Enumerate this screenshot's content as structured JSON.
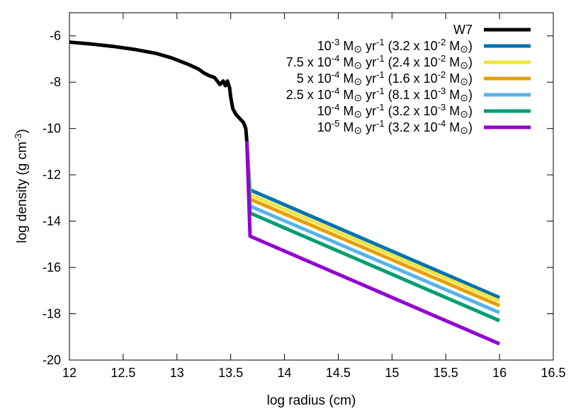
{
  "chart_data": {
    "type": "line",
    "xlabel": "log radius (cm)",
    "ylabel": "log density (g cm",
    "ylabel_sup": "-3",
    "ylabel_tail": ")",
    "xlim": [
      12,
      16.5
    ],
    "ylim": [
      -20,
      -5
    ],
    "xticks": [
      "12",
      "12.5",
      "13",
      "13.5",
      "14",
      "14.5",
      "15",
      "15.5",
      "16",
      "16.5"
    ],
    "yticks": [
      "-20",
      "-18",
      "-16",
      "-14",
      "-12",
      "-10",
      "-8",
      "-6"
    ],
    "grid": false,
    "legend_position": "top-right",
    "series": [
      {
        "name": "W7",
        "color": "#000000",
        "legend_parts": [
          [
            "W7",
            ""
          ]
        ],
        "x": [
          12.0,
          12.2,
          12.4,
          12.6,
          12.8,
          12.95,
          13.1,
          13.2,
          13.25,
          13.3,
          13.35,
          13.4,
          13.43,
          13.45,
          13.47,
          13.49,
          13.5,
          13.52,
          13.55,
          13.58,
          13.62,
          13.64,
          13.65
        ],
        "y": [
          -6.27,
          -6.35,
          -6.45,
          -6.58,
          -6.75,
          -6.95,
          -7.22,
          -7.43,
          -7.6,
          -7.72,
          -7.8,
          -8.1,
          -7.95,
          -8.15,
          -7.95,
          -8.25,
          -8.65,
          -9.15,
          -9.4,
          -9.55,
          -9.75,
          -10.0,
          -10.55
        ]
      },
      {
        "name": "1e-3 Msun/yr (3.2e-2 Msun)",
        "color": "#0072b2",
        "legend_parts": [
          [
            "10",
            ""
          ],
          [
            "-3",
            "sup"
          ],
          [
            " M",
            ""
          ],
          [
            "⊙",
            "sub"
          ],
          [
            " yr",
            ""
          ],
          [
            "-1",
            "sup"
          ],
          [
            " (3.2 x 10",
            ""
          ],
          [
            "-2",
            "sup"
          ],
          [
            " M",
            ""
          ],
          [
            "⊙",
            "sub"
          ],
          [
            ")",
            ""
          ]
        ],
        "x": [
          13.65,
          13.68,
          16.0
        ],
        "y": [
          -10.55,
          -12.65,
          -17.3
        ]
      },
      {
        "name": "7.5e-4 Msun/yr (2.4e-2 Msun)",
        "color": "#f0e442",
        "legend_parts": [
          [
            "7.5 x 10",
            ""
          ],
          [
            "-4",
            "sup"
          ],
          [
            " M",
            ""
          ],
          [
            "⊙",
            "sub"
          ],
          [
            " yr",
            ""
          ],
          [
            "-1",
            "sup"
          ],
          [
            " (2.4 x 10",
            ""
          ],
          [
            "-2",
            "sup"
          ],
          [
            " M",
            ""
          ],
          [
            "⊙",
            "sub"
          ],
          [
            ")",
            ""
          ]
        ],
        "x": [
          13.65,
          13.68,
          16.0
        ],
        "y": [
          -10.55,
          -12.85,
          -17.45
        ]
      },
      {
        "name": "5e-4 Msun/yr (1.6e-2 Msun)",
        "color": "#e69f00",
        "legend_parts": [
          [
            "5 x 10",
            ""
          ],
          [
            "-4",
            "sup"
          ],
          [
            " M",
            ""
          ],
          [
            "⊙",
            "sub"
          ],
          [
            " yr",
            ""
          ],
          [
            "-1",
            "sup"
          ],
          [
            " (1.6 x 10",
            ""
          ],
          [
            "-2",
            "sup"
          ],
          [
            " M",
            ""
          ],
          [
            "⊙",
            "sub"
          ],
          [
            ")",
            ""
          ]
        ],
        "x": [
          13.65,
          13.68,
          16.0
        ],
        "y": [
          -10.55,
          -13.05,
          -17.65
        ]
      },
      {
        "name": "2.5e-4 Msun/yr (8.1e-3 Msun)",
        "color": "#56b4e9",
        "legend_parts": [
          [
            "2.5 x 10",
            ""
          ],
          [
            "-4",
            "sup"
          ],
          [
            " M",
            ""
          ],
          [
            "⊙",
            "sub"
          ],
          [
            " yr",
            ""
          ],
          [
            "-1",
            "sup"
          ],
          [
            " (8.1 x 10",
            ""
          ],
          [
            "-3",
            "sup"
          ],
          [
            " M",
            ""
          ],
          [
            "⊙",
            "sub"
          ],
          [
            ")",
            ""
          ]
        ],
        "x": [
          13.65,
          13.68,
          16.0
        ],
        "y": [
          -10.55,
          -13.35,
          -17.95
        ]
      },
      {
        "name": "1e-4 Msun/yr (3.2e-3 Msun)",
        "color": "#009e73",
        "legend_parts": [
          [
            "10",
            ""
          ],
          [
            "-4",
            "sup"
          ],
          [
            " M",
            ""
          ],
          [
            "⊙",
            "sub"
          ],
          [
            " yr",
            ""
          ],
          [
            "-1",
            "sup"
          ],
          [
            " (3.2 x 10",
            ""
          ],
          [
            "-3",
            "sup"
          ],
          [
            " M",
            ""
          ],
          [
            "⊙",
            "sub"
          ],
          [
            ")",
            ""
          ]
        ],
        "x": [
          13.65,
          13.68,
          16.0
        ],
        "y": [
          -10.55,
          -13.65,
          -18.3
        ]
      },
      {
        "name": "1e-5 Msun/yr (3.2e-4 Msun)",
        "color": "#9400d3",
        "legend_parts": [
          [
            "10",
            ""
          ],
          [
            "-5",
            "sup"
          ],
          [
            " M",
            ""
          ],
          [
            "⊙",
            "sub"
          ],
          [
            " yr",
            ""
          ],
          [
            "-1",
            "sup"
          ],
          [
            " (3.2 x 10",
            ""
          ],
          [
            "-4",
            "sup"
          ],
          [
            " M",
            ""
          ],
          [
            "⊙",
            "sub"
          ],
          [
            ")",
            ""
          ]
        ],
        "x": [
          13.65,
          13.68,
          16.0
        ],
        "y": [
          -10.55,
          -14.65,
          -19.3
        ]
      }
    ]
  }
}
